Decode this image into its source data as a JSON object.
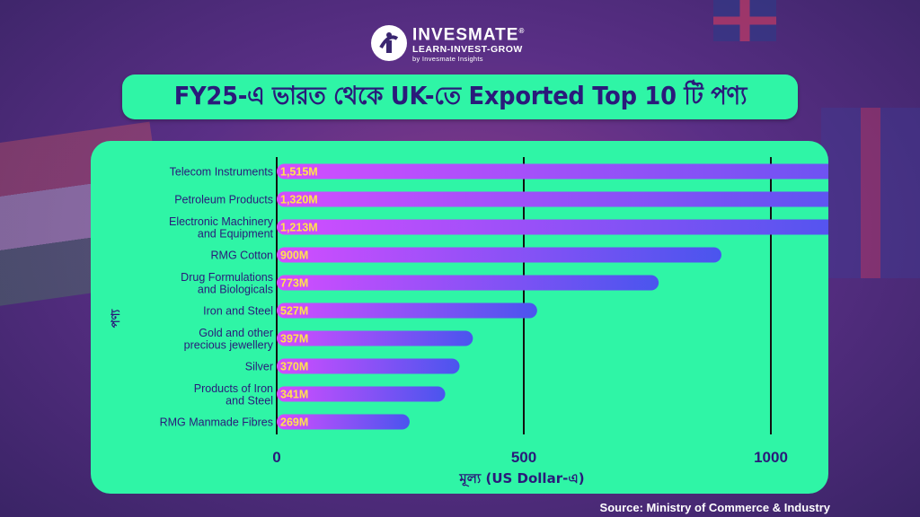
{
  "brand": {
    "name": "INVESMATE",
    "registered": "®",
    "tagline": "LEARN-INVEST-GROW",
    "byline": "by Invesmate Insights"
  },
  "title": "FY25-এ ভারত থেকে UK-তে Exported Top 10 টি পণ্য",
  "source": "Source: Ministry of Commerce & Industry",
  "colors": {
    "card": "#2ff5a6",
    "title_text": "#2a1a7a",
    "bar_start": "#d24dff",
    "bar_end": "#4a55ee",
    "value_label": "#ffe34d"
  },
  "chart_data": {
    "type": "bar",
    "orientation": "horizontal",
    "categories": [
      [
        "Telecom Instruments"
      ],
      [
        "Petroleum Products"
      ],
      [
        "Electronic Machinery",
        "and Equipment"
      ],
      [
        "RMG Cotton"
      ],
      [
        "Drug Formulations",
        "and Biologicals"
      ],
      [
        "Iron and Steel"
      ],
      [
        "Gold and other",
        "precious jewellery"
      ],
      [
        "Silver"
      ],
      [
        "Products of Iron",
        "and Steel"
      ],
      [
        "RMG Manmade Fibres"
      ]
    ],
    "values": [
      1515,
      1320,
      1213,
      900,
      773,
      527,
      397,
      370,
      341,
      269
    ],
    "value_labels": [
      "1,515M",
      "1,320M",
      "1,213M",
      "900M",
      "773M",
      "527M",
      "397M",
      "370M",
      "341M",
      "269M"
    ],
    "xlabel": "মূল্য (US Dollar-এ)",
    "ylabel": "পণ্য",
    "xlim": [
      0,
      2000
    ],
    "xticks": [
      0,
      500,
      1000,
      1500,
      2000
    ],
    "grid": "vertical"
  }
}
